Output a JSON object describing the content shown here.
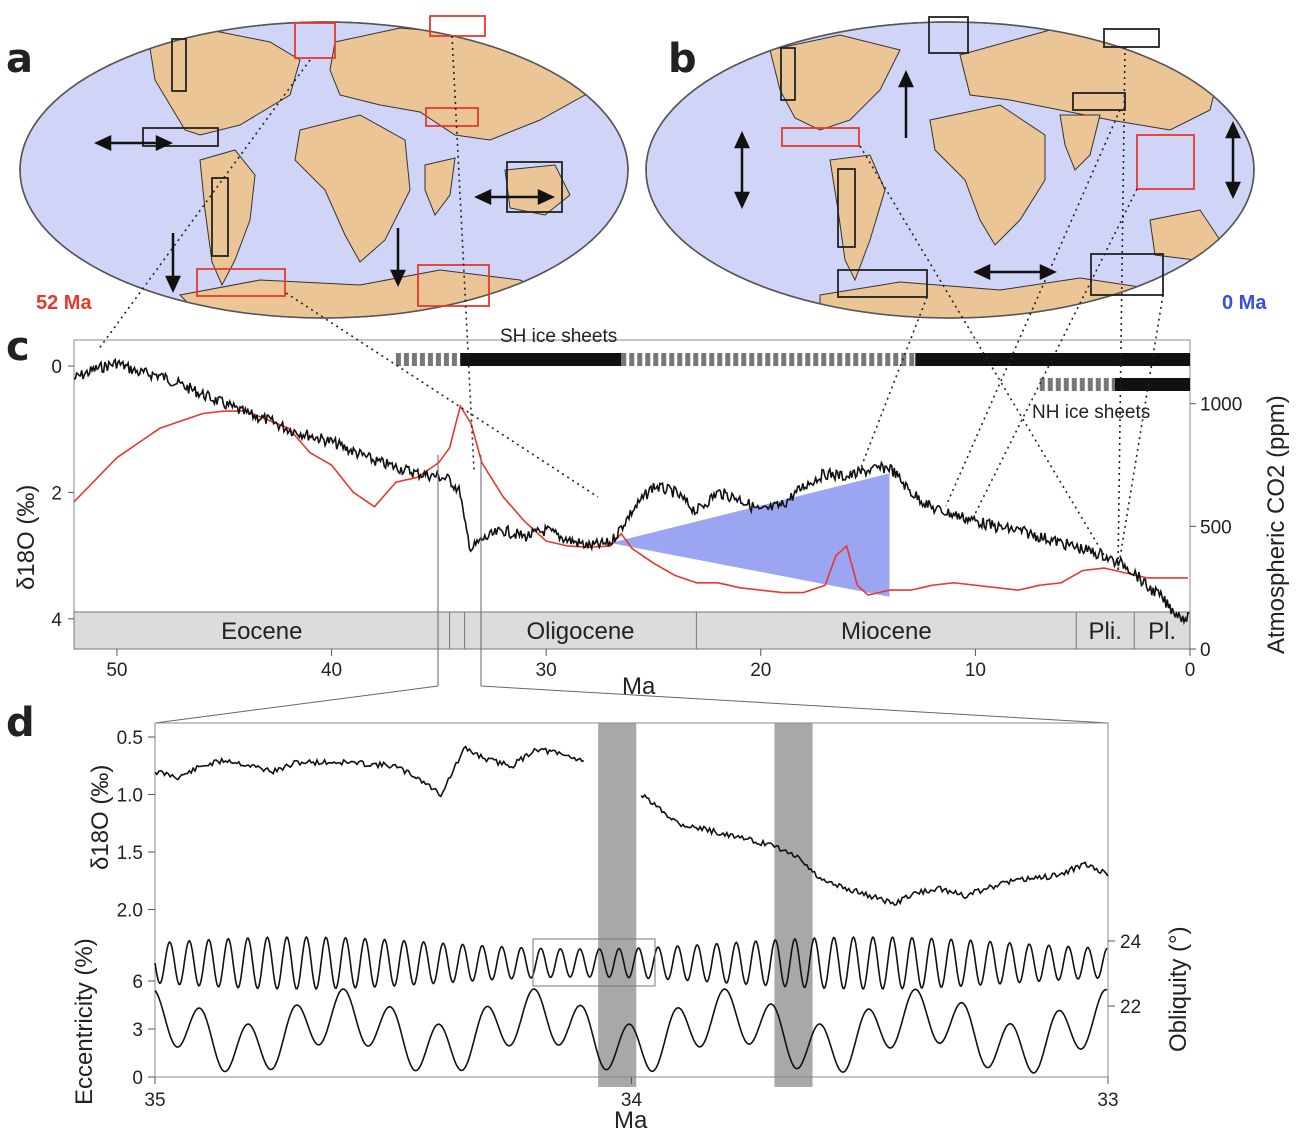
{
  "figure": {
    "panel_a": {
      "letter": "a",
      "age_label": "52 Ma",
      "age_color": "#e8382c"
    },
    "panel_b": {
      "letter": "b",
      "age_label": "0 Ma",
      "age_color": "#3a4fe0"
    },
    "panel_c": {
      "letter": "c",
      "sh_label": "SH ice sheets",
      "nh_label": "NH ice sheets",
      "y_left_label": "δ18O (‰)",
      "y_right_label": "Atmospheric CO2 (ppm)",
      "x_label": "Ma",
      "epochs": [
        "Eocene",
        "Oligocene",
        "Miocene",
        "Pli.",
        "Pl."
      ]
    },
    "panel_d": {
      "letter": "d",
      "y_top_label": "δ18O (‰)",
      "y_mid_left_label": "Eccentricity (%)",
      "y_mid_right_label": "Obliquity (°)",
      "x_label": "Ma"
    },
    "colors": {
      "ocean": "#d0d4f7",
      "land": "#ebc596",
      "co2": "#e8382c",
      "wedge": "#8a95ee",
      "highlight_band": "#a8a8a8"
    }
  },
  "chart_data": [
    {
      "id": "c",
      "type": "line",
      "x_name": "Ma",
      "xlim": [
        52,
        0
      ],
      "x_ticks": [
        50,
        40,
        30,
        20,
        10,
        0
      ],
      "left_axis": {
        "label": "δ18O (‰)",
        "ylim": [
          -0.3,
          4.2
        ],
        "inverted": true,
        "ticks": [
          0,
          2,
          4
        ]
      },
      "right_axis": {
        "label": "Atmospheric CO2 (ppm)",
        "ylim": [
          0,
          1200
        ],
        "ticks": [
          0,
          500,
          1000
        ]
      },
      "series": [
        {
          "axis": "left",
          "x": [
            52,
            51,
            50,
            49,
            48,
            47,
            46,
            45,
            44,
            43,
            42,
            41,
            40,
            39,
            38,
            37,
            36,
            35,
            34.5,
            34,
            33.8,
            33.5,
            33,
            32,
            31,
            30,
            29,
            28,
            27,
            26,
            25,
            24,
            23,
            22,
            21,
            20,
            19,
            18,
            17,
            16,
            15,
            14,
            13,
            12,
            11,
            10,
            9,
            8,
            7,
            6,
            5,
            4,
            3.5,
            3,
            2.5,
            2,
            1.5,
            1,
            0.5,
            0
          ],
          "y": [
            0.2,
            0.05,
            -0.05,
            0.1,
            0.15,
            0.3,
            0.45,
            0.6,
            0.75,
            0.85,
            1.0,
            1.1,
            1.2,
            1.35,
            1.5,
            1.6,
            1.7,
            1.75,
            1.8,
            2.0,
            2.5,
            2.9,
            2.75,
            2.6,
            2.7,
            2.6,
            2.75,
            2.85,
            2.8,
            2.3,
            1.9,
            2.0,
            2.3,
            2.0,
            2.1,
            2.3,
            2.2,
            1.9,
            1.7,
            1.75,
            1.65,
            1.6,
            2.0,
            2.25,
            2.35,
            2.45,
            2.55,
            2.6,
            2.7,
            2.8,
            2.9,
            3.0,
            3.1,
            3.15,
            3.3,
            3.5,
            3.6,
            3.8,
            3.95,
            4.0
          ]
        },
        {
          "name": "",
          "axis": "right",
          "x": [
            52,
            50,
            48,
            46,
            45,
            44,
            42,
            41,
            40,
            39,
            38,
            37,
            36,
            35,
            34.5,
            34,
            33.5,
            33,
            32,
            31,
            30,
            29,
            28,
            27,
            26.5,
            26,
            25,
            24,
            23,
            22,
            21,
            20,
            19,
            18,
            17,
            16.5,
            16,
            15.5,
            15,
            14,
            13,
            12,
            11,
            10,
            9,
            8,
            7,
            6,
            5,
            4,
            3.5,
            3,
            2.5,
            2,
            1,
            0
          ],
          "y": [
            600,
            780,
            900,
            960,
            970,
            970,
            900,
            800,
            750,
            640,
            580,
            680,
            700,
            760,
            820,
            990,
            920,
            760,
            620,
            520,
            440,
            420,
            415,
            420,
            470,
            410,
            350,
            300,
            270,
            270,
            250,
            240,
            230,
            230,
            260,
            380,
            420,
            260,
            220,
            240,
            240,
            260,
            270,
            260,
            250,
            240,
            260,
            270,
            320,
            330,
            320,
            310,
            300,
            290,
            290,
            290
          ]
        }
      ],
      "wedge": {
        "x": [
          27,
          14,
          14
        ],
        "y_left": [
          2.8,
          1.7,
          3.65
        ]
      }
    },
    {
      "id": "d",
      "type": "line",
      "x_name": "Ma",
      "xlim": [
        35,
        33
      ],
      "x_ticks": [
        35,
        34,
        33
      ],
      "delta18O": {
        "label": "δ18O (‰)",
        "ylim": [
          0.4,
          2.2
        ],
        "inverted": true,
        "ticks": [
          0.5,
          1.0,
          1.5,
          2.0
        ],
        "segments": [
          {
            "x": [
              35,
              34.95,
              34.9,
              34.85,
              34.8,
              34.75,
              34.7,
              34.6,
              34.5,
              34.45,
              34.4,
              34.35,
              34.3,
              34.25,
              34.2,
              34.15,
              34.1
            ],
            "y": [
              0.8,
              0.85,
              0.75,
              0.7,
              0.75,
              0.8,
              0.72,
              0.72,
              0.75,
              0.85,
              1.0,
              0.6,
              0.7,
              0.75,
              0.6,
              0.65,
              0.7
            ]
          },
          {
            "x": [
              33.98,
              33.9,
              33.8,
              33.75,
              33.7,
              33.65,
              33.6,
              33.5,
              33.45,
              33.4,
              33.35,
              33.3,
              33.2,
              33.1,
              33.05,
              33.0
            ],
            "y": [
              1.0,
              1.25,
              1.35,
              1.4,
              1.45,
              1.55,
              1.75,
              1.88,
              1.95,
              1.85,
              1.82,
              1.88,
              1.75,
              1.7,
              1.6,
              1.7
            ]
          }
        ]
      },
      "obliquity": {
        "label": "Obliquity (°)",
        "ticks": [
          22,
          24
        ],
        "ylim": [
          21.5,
          24.5
        ]
      },
      "eccentricity": {
        "label": "Eccentricity (%)",
        "ticks": [
          0,
          3,
          6
        ],
        "ylim": [
          -0.3,
          6.5
        ]
      },
      "bands_ma": [
        [
          34.07,
          33.99
        ],
        [
          33.7,
          33.62
        ]
      ]
    }
  ]
}
